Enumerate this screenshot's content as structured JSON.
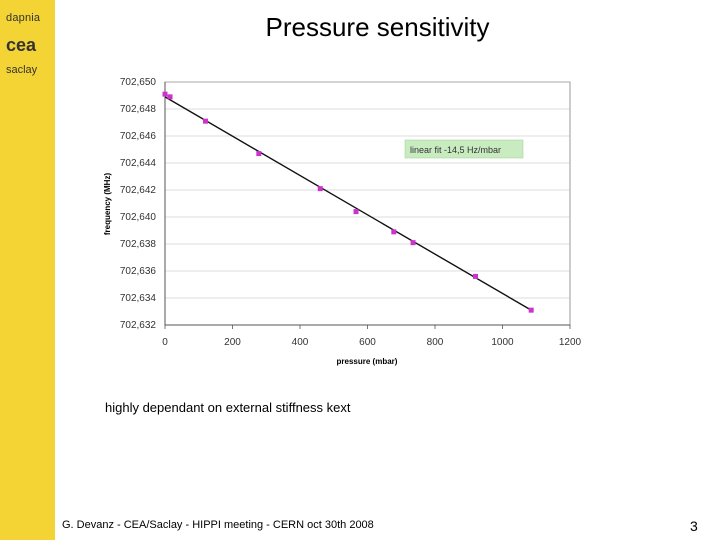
{
  "logo": {
    "top": "dapnia",
    "bottom": "saclay",
    "mark": "cea"
  },
  "slide": {
    "title": "Pressure sensitivity",
    "note": "highly dependant on external stiffness kext",
    "footer": "G. Devanz - CEA/Saclay - HIPPI meeting - CERN oct 30th 2008",
    "page_number": "3"
  },
  "colors": {
    "sidebar": "#f4d434",
    "points": "#cc33cc",
    "fit_line": "#111111",
    "fit_box": "#c8ecc0",
    "grid": "#bbbbbb"
  },
  "chart_data": {
    "type": "scatter",
    "xlabel": "pressure (mbar)",
    "ylabel": "frequency (MHz)",
    "xlim": [
      0,
      1200
    ],
    "ylim": [
      702.632,
      702.65
    ],
    "x_ticks": [
      0,
      200,
      400,
      600,
      800,
      1000,
      1200
    ],
    "x_tick_labels": [
      "0",
      "200",
      "400",
      "600",
      "800",
      "1000",
      "1200"
    ],
    "y_ticks": [
      702.632,
      702.634,
      702.636,
      702.638,
      702.64,
      702.642,
      702.644,
      702.646,
      702.648,
      702.65
    ],
    "y_tick_labels": [
      "702,632",
      "702,634",
      "702,636",
      "702,638",
      "702,640",
      "702,642",
      "702,644",
      "702,646",
      "702,648",
      "702,650"
    ],
    "grid": "horizontal",
    "series": [
      {
        "points": [
          {
            "x": 0,
            "y": 702.6491
          },
          {
            "x": 15,
            "y": 702.6489
          },
          {
            "x": 120,
            "y": 702.6471
          },
          {
            "x": 278,
            "y": 702.6447
          },
          {
            "x": 460,
            "y": 702.6421
          },
          {
            "x": 566,
            "y": 702.6404
          },
          {
            "x": 678,
            "y": 702.6389
          },
          {
            "x": 735,
            "y": 702.6381
          },
          {
            "x": 920,
            "y": 702.6356
          },
          {
            "x": 1085,
            "y": 702.6331
          }
        ]
      }
    ],
    "fit": {
      "label": "linear fit -14,5 Hz/mbar",
      "x": [
        0,
        1085
      ],
      "y": [
        702.6489,
        702.6331
      ]
    }
  }
}
